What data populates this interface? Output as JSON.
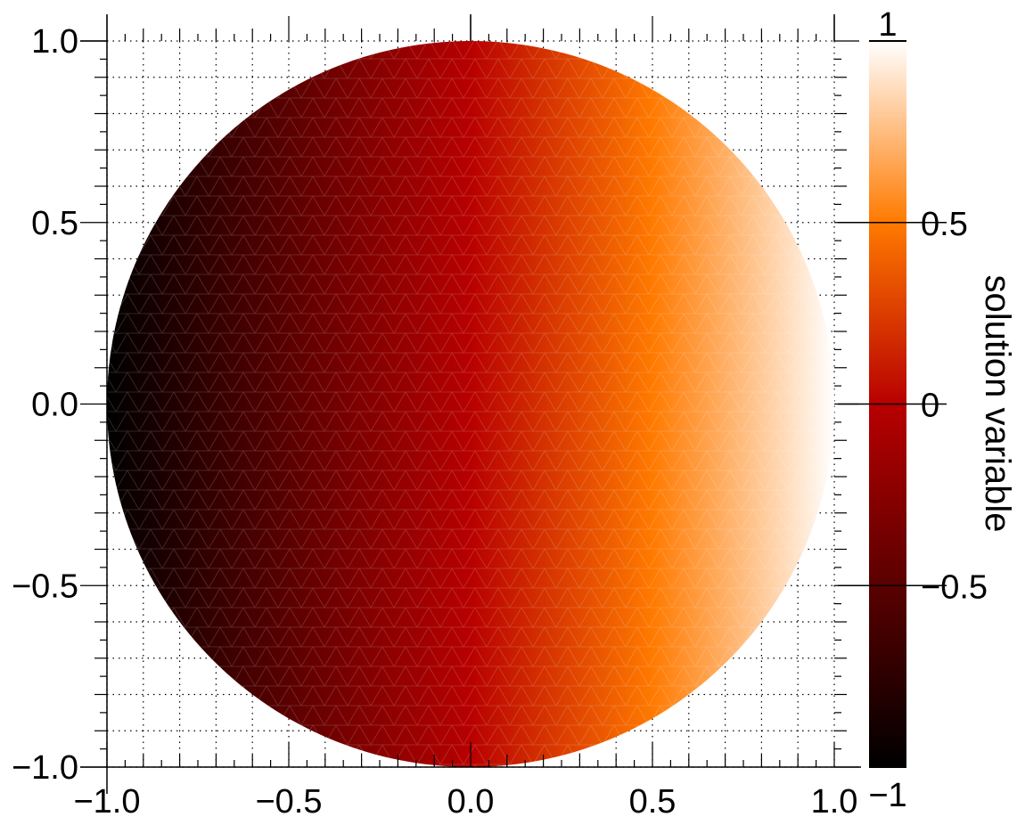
{
  "chart_data": {
    "type": "heatmap",
    "description_shape": "disk",
    "title": "",
    "xlabel": "",
    "ylabel": "",
    "xlim": [
      -1.0,
      1.0
    ],
    "ylim": [
      -1.0,
      1.0
    ],
    "x_ticks": [
      "−1.0",
      "−0.5",
      "0.0",
      "0.5",
      "1.0"
    ],
    "y_ticks": [
      "−1.0",
      "−0.5",
      "0.0",
      "0.5",
      "1.0"
    ],
    "x_tick_values": [
      -1.0,
      -0.5,
      0.0,
      0.5,
      1.0
    ],
    "y_tick_values": [
      -1.0,
      -0.5,
      0.0,
      0.5,
      1.0
    ],
    "grid": true,
    "field": "solution ≈ x over unit disk (triangulated mesh)",
    "colorbar": {
      "label": "solution variable",
      "range": [
        -1,
        1
      ],
      "ticks": [
        "−1",
        "−0.5",
        "0",
        "0.5",
        "1"
      ],
      "tick_values": [
        -1,
        -0.5,
        0,
        0.5,
        1
      ],
      "colormap": [
        "#000000",
        "#5a0000",
        "#b80000",
        "#ff7a00",
        "#ffffff"
      ],
      "placement": "right"
    }
  }
}
